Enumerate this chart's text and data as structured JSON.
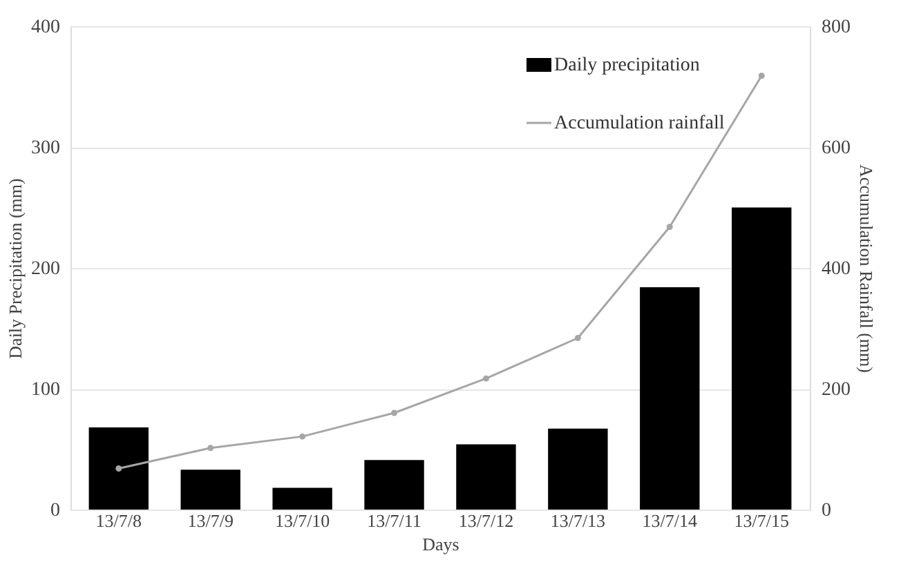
{
  "chart_data": {
    "type": "bar",
    "xlabel": "Days",
    "ylabel": "Daily Precipitation (mm)",
    "y2label": "Accumulation Rainfall (mm)",
    "categories": [
      "13/7/8",
      "13/7/9",
      "13/7/10",
      "13/7/11",
      "13/7/12",
      "13/7/13",
      "13/7/14",
      "13/7/15"
    ],
    "series": [
      {
        "name": "Daily precipitation",
        "color": "#000000",
        "values": [
          68,
          33,
          18,
          41,
          54,
          67,
          184,
          250
        ]
      },
      {
        "name": "Accumulation rainfall",
        "type": "line",
        "axis": "y2",
        "color": "#a6a6a6",
        "marker": "circle",
        "values": [
          68,
          102,
          121,
          160,
          217,
          284,
          468,
          718
        ]
      }
    ],
    "ylim": [
      0,
      400
    ],
    "yticks": [
      0,
      100,
      200,
      300,
      400
    ],
    "y2lim": [
      0,
      800
    ],
    "y2ticks": [
      0,
      200,
      400,
      600,
      800
    ],
    "grid": "y",
    "legend": "top right"
  }
}
